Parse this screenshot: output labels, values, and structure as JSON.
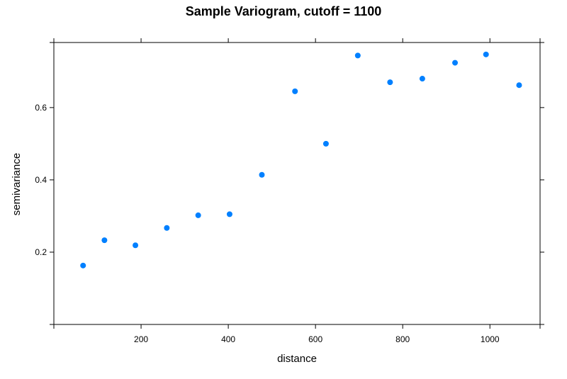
{
  "chart_data": {
    "type": "scatter",
    "title": "Sample Variogram, cutoff = 1100",
    "xlabel": "distance",
    "ylabel": "semivariance",
    "xlim": [
      0,
      1115
    ],
    "ylim": [
      0.0,
      0.78
    ],
    "x_ticks": [
      200,
      400,
      600,
      800,
      1000
    ],
    "x_tick_labels": [
      "200",
      "400",
      "600",
      "800",
      "1000"
    ],
    "y_ticks": [
      0.2,
      0.4,
      0.6
    ],
    "y_tick_labels": [
      "0.2",
      "0.4",
      "0.6"
    ],
    "grid": false,
    "point_color": "#0080ff",
    "points": [
      {
        "x": 67,
        "y": 0.163
      },
      {
        "x": 116,
        "y": 0.233
      },
      {
        "x": 187,
        "y": 0.219
      },
      {
        "x": 259,
        "y": 0.267
      },
      {
        "x": 331,
        "y": 0.302
      },
      {
        "x": 403,
        "y": 0.305
      },
      {
        "x": 477,
        "y": 0.414
      },
      {
        "x": 553,
        "y": 0.645
      },
      {
        "x": 624,
        "y": 0.5
      },
      {
        "x": 697,
        "y": 0.744
      },
      {
        "x": 771,
        "y": 0.67
      },
      {
        "x": 845,
        "y": 0.68
      },
      {
        "x": 920,
        "y": 0.724
      },
      {
        "x": 991,
        "y": 0.747
      },
      {
        "x": 1067,
        "y": 0.662
      }
    ]
  }
}
